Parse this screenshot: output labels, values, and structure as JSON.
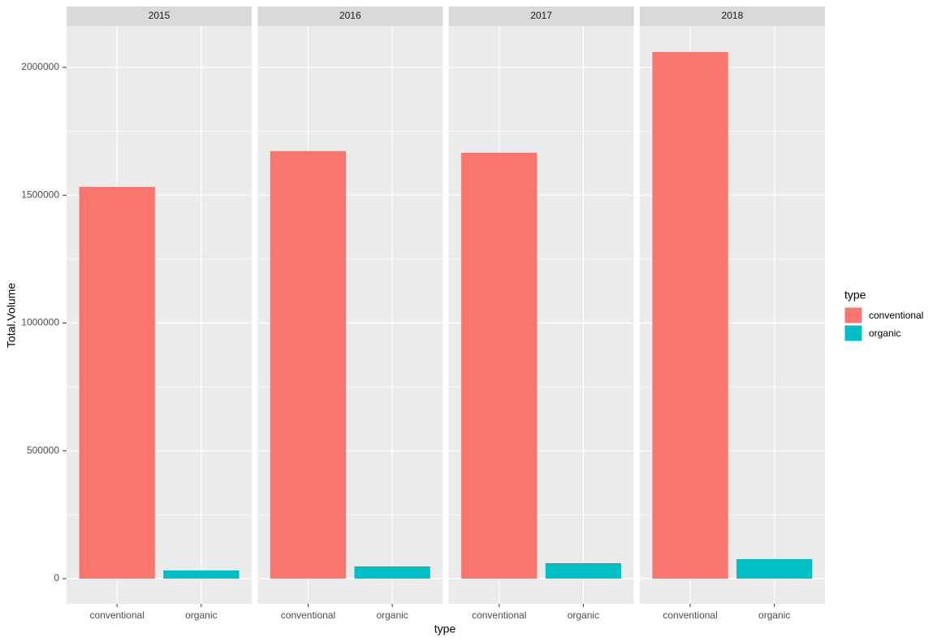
{
  "chart_data": {
    "type": "bar",
    "x_label": "type",
    "y_label": "Total.Volume",
    "categories": [
      "conventional",
      "organic"
    ],
    "colors": [
      "#f8766d",
      "#00bfc4"
    ],
    "facets": [
      {
        "label": "2015",
        "values": [
          1532600,
          31800
        ]
      },
      {
        "label": "2016",
        "values": [
          1672500,
          47700
        ]
      },
      {
        "label": "2017",
        "values": [
          1666100,
          60400
        ]
      },
      {
        "label": "2018",
        "values": [
          2060400,
          76300
        ]
      }
    ],
    "ylim": [
      -98600,
      2162000
    ],
    "yticks": [
      0,
      500000,
      1000000,
      1500000,
      2000000
    ],
    "grid": true,
    "legend": {
      "title": "type",
      "position": "right"
    }
  }
}
